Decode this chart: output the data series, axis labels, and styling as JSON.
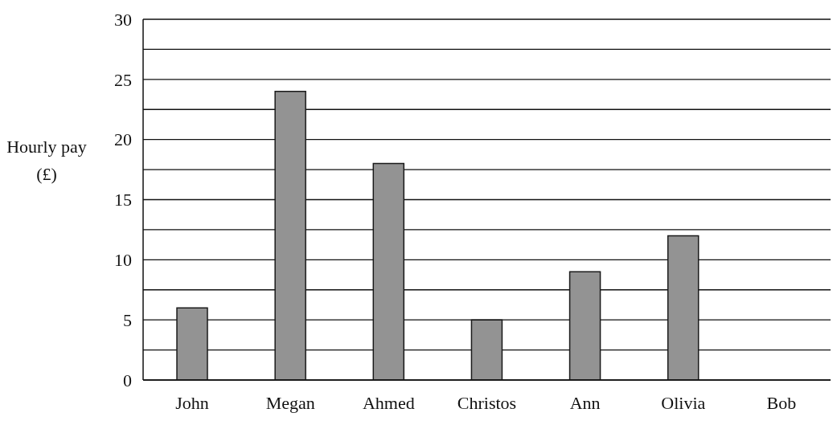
{
  "chart_data": {
    "type": "bar",
    "ylabel": "Hourly pay (£)",
    "categories": [
      "John",
      "Megan",
      "Ahmed",
      "Christos",
      "Ann",
      "Olivia",
      "Bob"
    ],
    "values": [
      6,
      24,
      18,
      5,
      9,
      12,
      null
    ],
    "color": "#939393",
    "ylim": [
      0,
      30
    ],
    "yticks": [
      0,
      {
        "value": 2.5,
        "label": null
      },
      5,
      {
        "value": 7.5,
        "label": null
      },
      10,
      {
        "value": 12.5,
        "label": null
      },
      15,
      {
        "value": 17.5,
        "label": null
      },
      20,
      {
        "value": 22.5,
        "label": null
      },
      25,
      {
        "value": 27.5,
        "label": null
      },
      30
    ],
    "grid": "y"
  }
}
